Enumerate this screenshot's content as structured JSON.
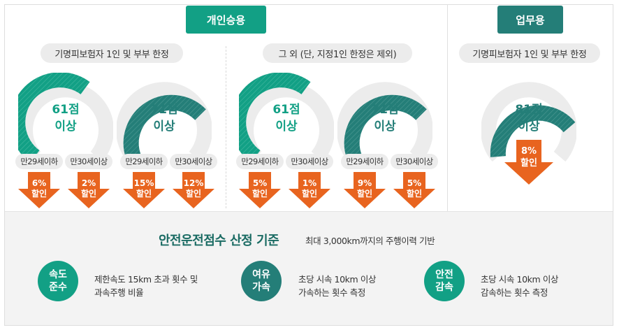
{
  "tabs": {
    "personal": "개인승용",
    "business": "업무용"
  },
  "groups": {
    "named_limited": "기명피보험자 1인 및 부부 한정",
    "others": "그 외 (단, 지정1인 한정은 제외)",
    "business_named": "기명피보험자 1인 및 부부 한정"
  },
  "score_labels": {
    "s61": "61점",
    "s71": "71점",
    "s81": "81점",
    "above": "이상"
  },
  "age_labels": {
    "under29": "만29세이하",
    "over30": "만30세이상"
  },
  "discounts": {
    "named_61_under29": "6%",
    "named_61_over30": "2%",
    "named_71_under29": "15%",
    "named_71_over30": "12%",
    "others_61_under29": "5%",
    "others_61_over30": "1%",
    "others_71_under29": "9%",
    "others_71_over30": "5%",
    "business_81": "8%",
    "suffix": "할인"
  },
  "criteria": {
    "title": "안전운전점수 산정 기준",
    "subtitle": "최대 3,000km까지의 주행이력 기반",
    "items": [
      {
        "label_line1": "속도",
        "label_line2": "준수",
        "desc_line1": "제한속도 15km 초과 횟수 및",
        "desc_line2": "과속주행 비율"
      },
      {
        "label_line1": "여유",
        "label_line2": "가속",
        "desc_line1": "초당 시속 10km 이상",
        "desc_line2": "가속하는 횟수 측정"
      },
      {
        "label_line1": "안전",
        "label_line2": "감속",
        "desc_line1": "초당 시속 10km 이상",
        "desc_line2": "감속하는 횟수 측정"
      }
    ]
  },
  "colors": {
    "green": "#12a085",
    "teal": "#247e78",
    "orange": "#e8641f",
    "ring_bg": "#ececec"
  }
}
